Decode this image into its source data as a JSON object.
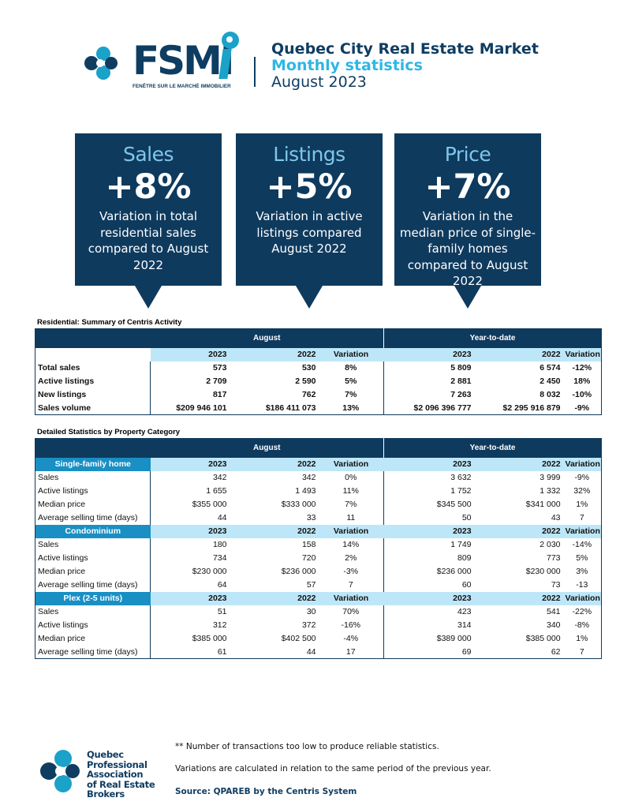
{
  "header": {
    "brand": "FSMI",
    "brand_tagline": "FENÊTRE SUR LE MARCHÉ IMMOBILIER",
    "title": "Quebec City Real Estate Market",
    "subtitle": "Monthly statistics",
    "period": "August 2023",
    "colors": {
      "navy": "#0f3d62",
      "cyan": "#2fb6e6"
    }
  },
  "cards": [
    {
      "title": "Sales",
      "value": "+8%",
      "desc": "Variation in total residential sales compared to August 2022"
    },
    {
      "title": "Listings",
      "value": "+5%",
      "desc": "Variation in active listings compared August 2022"
    },
    {
      "title": "Price",
      "value": "+7%",
      "desc": "Variation in the median price of single-family homes compared to August 2022"
    }
  ],
  "summary": {
    "title": "Residential: Summary of Centris Activity",
    "group1": "August",
    "group2": "Year-to-date",
    "cols": [
      "2023",
      "2022",
      "Variation",
      "2023",
      "2022",
      "Variation"
    ],
    "rows": [
      {
        "label": "Total sales",
        "v": [
          "573",
          "530",
          "8%",
          "5 809",
          "6 574",
          "-12%"
        ]
      },
      {
        "label": "Active listings",
        "v": [
          "2 709",
          "2 590",
          "5%",
          "2 881",
          "2 450",
          "18%"
        ]
      },
      {
        "label": "New listings",
        "v": [
          "817",
          "762",
          "7%",
          "7 263",
          "8 032",
          "-10%"
        ]
      },
      {
        "label": "Sales volume",
        "v": [
          "$209 946 101",
          "$186 411 073",
          "13%",
          "$2 096 396 777",
          "$2 295 916 879",
          "-9%"
        ]
      }
    ]
  },
  "detailed": {
    "title": "Detailed Statistics by Property Category",
    "group1": "August",
    "group2": "Year-to-date",
    "cols": [
      "2023",
      "2022",
      "Variation",
      "2023",
      "2022",
      "Variation"
    ],
    "categories": [
      {
        "name": "Single-family home",
        "rows": [
          {
            "label": "Sales",
            "v": [
              "342",
              "342",
              "0%",
              "3 632",
              "3 999",
              "-9%"
            ]
          },
          {
            "label": "Active listings",
            "v": [
              "1 655",
              "1 493",
              "11%",
              "1 752",
              "1 332",
              "32%"
            ]
          },
          {
            "label": "Median price",
            "v": [
              "$355 000",
              "$333 000",
              "7%",
              "$345 500",
              "$341 000",
              "1%"
            ]
          },
          {
            "label": "Average selling time (days)",
            "v": [
              "44",
              "33",
              "11",
              "50",
              "43",
              "7"
            ]
          }
        ]
      },
      {
        "name": "Condominium",
        "rows": [
          {
            "label": "Sales",
            "v": [
              "180",
              "158",
              "14%",
              "1 749",
              "2 030",
              "-14%"
            ]
          },
          {
            "label": "Active listings",
            "v": [
              "734",
              "720",
              "2%",
              "809",
              "773",
              "5%"
            ]
          },
          {
            "label": "Median price",
            "v": [
              "$230 000",
              "$236 000",
              "-3%",
              "$236 000",
              "$230 000",
              "3%"
            ]
          },
          {
            "label": "Average selling time (days)",
            "v": [
              "64",
              "57",
              "7",
              "60",
              "73",
              "-13"
            ]
          }
        ]
      },
      {
        "name": "Plex (2-5 units)",
        "rows": [
          {
            "label": "Sales",
            "v": [
              "51",
              "30",
              "70%",
              "423",
              "541",
              "-22%"
            ]
          },
          {
            "label": "Active listings",
            "v": [
              "312",
              "372",
              "-16%",
              "314",
              "340",
              "-8%"
            ]
          },
          {
            "label": "Median price",
            "v": [
              "$385 000",
              "$402 500",
              "-4%",
              "$389 000",
              "$385 000",
              "1%"
            ]
          },
          {
            "label": "Average selling time (days)",
            "v": [
              "61",
              "44",
              "17",
              "69",
              "62",
              "7"
            ]
          }
        ]
      }
    ]
  },
  "footer": {
    "org_lines": [
      "Quebec",
      "Professional",
      "Association",
      "of Real Estate",
      "Brokers"
    ],
    "note1": "**  Number of transactions too low to produce reliable statistics.",
    "note2": "Variations are calculated in relation to the same period of the previous year.",
    "source": "Source: QPAREB by the Centris System"
  }
}
